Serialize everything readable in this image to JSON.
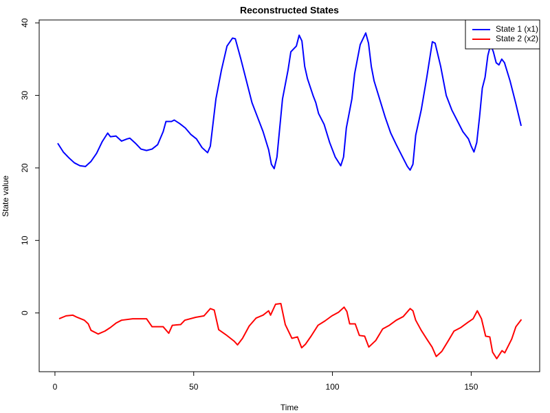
{
  "chart_data": {
    "type": "line",
    "title": "Reconstructed States",
    "x_label": "Time",
    "y_label": "State value",
    "xlim": [
      -5.68,
      174.68
    ],
    "ylim": [
      -8.1,
      40.4
    ],
    "xticks": [
      0,
      50,
      100,
      150
    ],
    "yticks": [
      0,
      10,
      20,
      30,
      40
    ],
    "legend": "topright",
    "series": [
      {
        "name": "State 1 (x1)",
        "color": "#0000ff",
        "x": [
          1,
          3,
          5,
          7,
          9,
          11,
          13,
          15,
          17,
          19,
          20,
          22,
          24,
          26,
          27,
          29,
          31,
          33,
          35,
          37,
          39,
          40,
          42,
          43,
          45,
          47,
          49,
          51,
          53,
          55,
          56,
          58,
          60,
          62,
          64,
          65,
          67,
          69,
          71,
          73,
          75,
          77,
          78,
          79,
          80,
          82,
          84,
          85,
          87,
          88,
          89,
          90,
          91,
          93,
          94,
          95,
          97,
          99,
          101,
          103,
          104,
          105,
          107,
          108,
          110,
          112,
          113,
          114,
          115,
          117,
          119,
          121,
          123,
          125,
          127,
          128,
          129,
          130,
          132,
          134,
          136,
          137,
          139,
          141,
          143,
          145,
          147,
          149,
          150,
          151,
          152,
          153,
          154,
          155,
          156,
          157,
          158,
          159,
          160,
          161,
          162,
          164,
          166,
          168
        ],
        "values": [
          23.4,
          22.2,
          21.4,
          20.7,
          20.3,
          20.2,
          20.9,
          22.0,
          23.6,
          24.8,
          24.3,
          24.4,
          23.7,
          24.0,
          24.1,
          23.4,
          22.6,
          22.4,
          22.6,
          23.2,
          25.0,
          26.4,
          26.4,
          26.6,
          26.1,
          25.5,
          24.6,
          24.0,
          22.8,
          22.1,
          23.0,
          29.5,
          33.5,
          36.8,
          37.9,
          37.8,
          35.0,
          32.0,
          29.0,
          27.0,
          25.0,
          22.5,
          20.5,
          19.9,
          21.5,
          29.5,
          33.5,
          36.0,
          36.8,
          38.3,
          37.5,
          34.0,
          32.3,
          30.0,
          29.0,
          27.5,
          26.0,
          23.5,
          21.5,
          20.3,
          21.5,
          25.5,
          29.5,
          33.0,
          37.0,
          38.6,
          37.2,
          34.0,
          32.0,
          29.5,
          27.0,
          24.8,
          23.2,
          21.7,
          20.2,
          19.7,
          20.5,
          24.5,
          28.0,
          32.5,
          37.4,
          37.2,
          34.0,
          30.0,
          28.0,
          26.5,
          25.0,
          24.0,
          23.0,
          22.2,
          23.5,
          27.0,
          31.0,
          32.5,
          35.5,
          37.0,
          36.0,
          34.5,
          34.2,
          35.0,
          34.5,
          32.0,
          29.0,
          25.8
        ]
      },
      {
        "name": "State 2 (x2)",
        "color": "#ff0000",
        "x": [
          1.5,
          4,
          6.4,
          8,
          10.6,
          12,
          13,
          15.6,
          18,
          20,
          22,
          24,
          28,
          33,
          35,
          39,
          41,
          42.3,
          45.3,
          46.8,
          50.7,
          53.7,
          56,
          57.4,
          59,
          61.6,
          64.6,
          65.8,
          67.6,
          70,
          72.5,
          75,
          77,
          77.7,
          79.5,
          81.4,
          83,
          85.4,
          87.4,
          88.9,
          90.3,
          92.3,
          94.8,
          97.3,
          99.8,
          102.2,
          104.2,
          105.2,
          106.2,
          108.2,
          109.7,
          111.6,
          113.1,
          115.6,
          118.1,
          120.5,
          123,
          125.5,
          128,
          129,
          130,
          132,
          134,
          135.9,
          137.4,
          139.4,
          141.8,
          143.8,
          146.3,
          148.8,
          150.7,
          152.2,
          153.7,
          155.2,
          156.7,
          157.7,
          159.2,
          161.1,
          162.1,
          164.6,
          166.1,
          168.1
        ],
        "values": [
          -0.8,
          -0.4,
          -0.3,
          -0.6,
          -1.0,
          -1.5,
          -2.4,
          -2.9,
          -2.5,
          -2.0,
          -1.4,
          -1.0,
          -0.8,
          -0.8,
          -1.9,
          -1.9,
          -2.8,
          -1.7,
          -1.6,
          -1.0,
          -0.6,
          -0.4,
          0.6,
          0.4,
          -2.3,
          -3.0,
          -3.9,
          -4.4,
          -3.5,
          -1.8,
          -0.7,
          -0.3,
          0.3,
          -0.3,
          1.2,
          1.3,
          -1.6,
          -3.5,
          -3.3,
          -4.8,
          -4.3,
          -3.2,
          -1.7,
          -1.1,
          -0.4,
          0.1,
          0.8,
          0.2,
          -1.5,
          -1.5,
          -3.1,
          -3.2,
          -4.7,
          -3.8,
          -2.2,
          -1.7,
          -1.0,
          -0.5,
          0.6,
          0.3,
          -1.0,
          -2.4,
          -3.6,
          -4.7,
          -6.0,
          -5.3,
          -3.8,
          -2.5,
          -2.0,
          -1.3,
          -0.8,
          0.3,
          -0.8,
          -3.2,
          -3.3,
          -5.4,
          -6.3,
          -5.2,
          -5.5,
          -3.6,
          -1.9,
          -0.9
        ]
      }
    ]
  }
}
